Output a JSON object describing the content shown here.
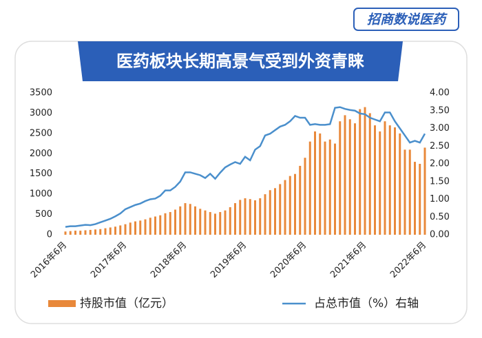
{
  "logo": "招商数说医药",
  "chart_data": {
    "type": "bar-line",
    "title": "医药板块长期高景气受到外资青睐",
    "categories": [
      "2016年6月",
      null,
      null,
      null,
      null,
      null,
      null,
      null,
      null,
      null,
      null,
      null,
      "2017年6月",
      null,
      null,
      null,
      null,
      null,
      null,
      null,
      null,
      null,
      null,
      null,
      "2018年6月",
      null,
      null,
      null,
      null,
      null,
      null,
      null,
      null,
      null,
      null,
      null,
      "2019年6月",
      null,
      null,
      null,
      null,
      null,
      null,
      null,
      null,
      null,
      null,
      null,
      "2020年6月",
      null,
      null,
      null,
      null,
      null,
      null,
      null,
      null,
      null,
      null,
      null,
      "2021年6月",
      null,
      null,
      null,
      null,
      null,
      null,
      null,
      null,
      null,
      null,
      null,
      "2022年6月"
    ],
    "series": [
      {
        "name": "持股市值（亿元）",
        "color": "#e8883a",
        "type": "bar",
        "values": [
          80,
          90,
          100,
          100,
          110,
          120,
          130,
          140,
          160,
          180,
          200,
          230,
          260,
          300,
          330,
          350,
          380,
          420,
          450,
          480,
          530,
          560,
          620,
          700,
          780,
          760,
          700,
          640,
          600,
          560,
          520,
          560,
          600,
          680,
          780,
          860,
          900,
          880,
          850,
          900,
          1000,
          1100,
          1150,
          1250,
          1350,
          1450,
          1500,
          1700,
          1900,
          2300,
          2550,
          2500,
          2300,
          2350,
          2250,
          2800,
          2950,
          2850,
          2750,
          3100,
          3150,
          3000,
          2700,
          2550,
          2800,
          2700,
          2650,
          2500,
          2100,
          2100,
          1800,
          1750,
          2150
        ]
      },
      {
        "name": "占总市值（%）右轴",
        "color": "#4a8fcc",
        "type": "line",
        "axis": "y2",
        "values": [
          0.22,
          0.24,
          0.24,
          0.26,
          0.28,
          0.27,
          0.3,
          0.35,
          0.4,
          0.45,
          0.52,
          0.6,
          0.72,
          0.78,
          0.84,
          0.88,
          0.95,
          1.0,
          1.02,
          1.1,
          1.25,
          1.25,
          1.35,
          1.5,
          1.76,
          1.76,
          1.72,
          1.68,
          1.6,
          1.72,
          1.58,
          1.75,
          1.9,
          1.98,
          2.05,
          2.0,
          2.2,
          2.1,
          2.4,
          2.5,
          2.8,
          2.85,
          2.95,
          3.05,
          3.1,
          3.2,
          3.35,
          3.3,
          3.3,
          3.1,
          3.12,
          3.1,
          3.1,
          3.12,
          3.58,
          3.6,
          3.55,
          3.52,
          3.5,
          3.42,
          3.4,
          3.3,
          3.25,
          3.2,
          3.45,
          3.45,
          3.2,
          3.0,
          2.8,
          2.6,
          2.65,
          2.6,
          2.85
        ]
      }
    ],
    "ylim": [
      0,
      3500
    ],
    "yticks": [
      0,
      500,
      1000,
      1500,
      2000,
      2500,
      3000,
      3500
    ],
    "y2lim": [
      0,
      4
    ],
    "y2ticks": [
      {
        "value": 0,
        "label": "0.00"
      },
      {
        "value": 0.5,
        "label": "0.50"
      },
      {
        "value": 1,
        "label": "1.00"
      },
      {
        "value": 1.5,
        "label": "1.50"
      },
      {
        "value": 2,
        "label": "2.00"
      },
      {
        "value": 2.5,
        "label": "2.50"
      },
      {
        "value": 3,
        "label": "3.00"
      },
      {
        "value": 3.5,
        "label": "3.50"
      },
      {
        "value": 4,
        "label": "4.00"
      }
    ],
    "legend": "bottom"
  }
}
